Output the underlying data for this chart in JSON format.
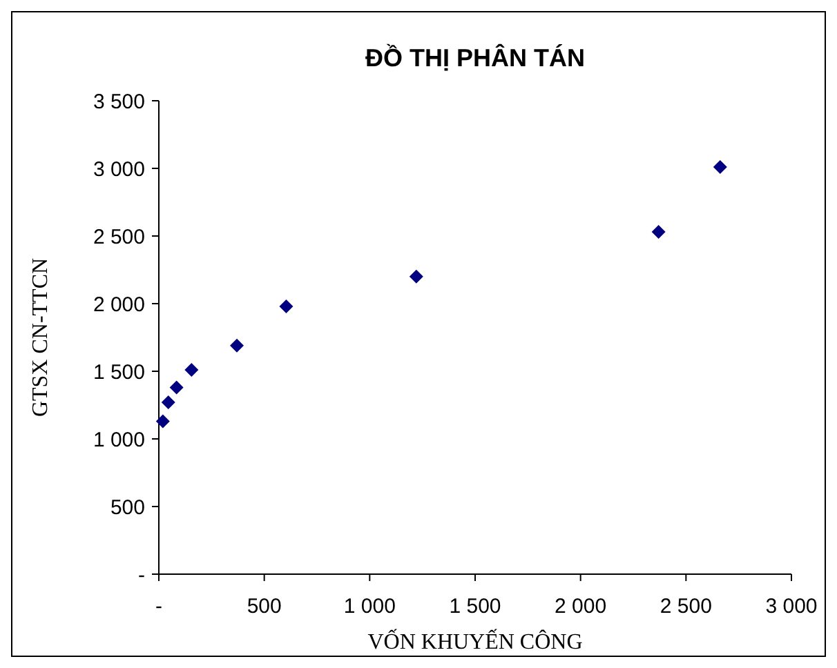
{
  "chart_data": {
    "type": "scatter",
    "title": "ĐỒ THỊ PHÂN TÁN",
    "xlabel": "VỐN KHUYẾN CÔNG",
    "ylabel": "GTSX CN-TTCN",
    "marker": "diamond",
    "grid": false,
    "x": [
      19,
      45,
      84,
      155,
      370,
      604,
      1221,
      2370,
      2662
    ],
    "series": [
      {
        "color": "#000080",
        "values": [
          1130,
          1270,
          1380,
          1510,
          1690,
          1980,
          2200,
          2530,
          3010
        ]
      }
    ],
    "xlim": [
      0,
      3000
    ],
    "xticks": [
      {
        "value": 0,
        "label": "-"
      },
      {
        "value": 500,
        "label": "500"
      },
      {
        "value": 1000,
        "label": "1 000"
      },
      {
        "value": 1500,
        "label": "1 500"
      },
      {
        "value": 2000,
        "label": "2 000"
      },
      {
        "value": 2500,
        "label": "2 500"
      },
      {
        "value": 3000,
        "label": "3 000"
      }
    ],
    "ylim": [
      0,
      3500
    ],
    "yticks": [
      {
        "value": 0,
        "label": "-"
      },
      {
        "value": 500,
        "label": "500"
      },
      {
        "value": 1000,
        "label": "1 000"
      },
      {
        "value": 1500,
        "label": "1 500"
      },
      {
        "value": 2000,
        "label": "2 000"
      },
      {
        "value": 2500,
        "label": "2 500"
      },
      {
        "value": 3000,
        "label": "3 000"
      },
      {
        "value": 3500,
        "label": "3 500"
      }
    ]
  }
}
